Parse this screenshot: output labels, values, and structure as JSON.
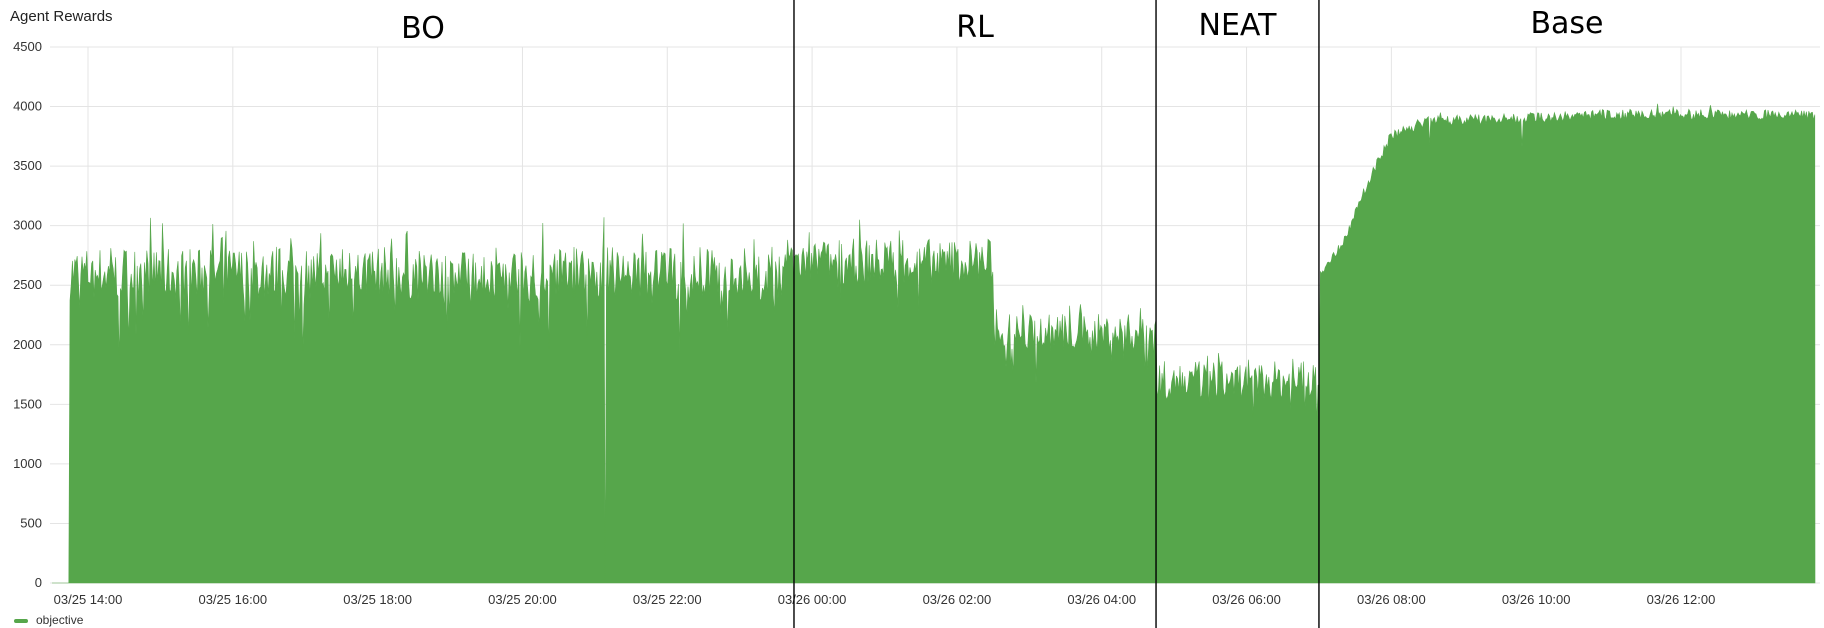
{
  "panel": {
    "title": "Agent Rewards"
  },
  "chart_data": {
    "type": "area",
    "title": "Agent Rewards",
    "xlabel": "",
    "ylabel": "",
    "ylim": [
      0,
      4500
    ],
    "y_ticks": [
      "4500",
      "4000",
      "3500",
      "3000",
      "2500",
      "2000",
      "1500",
      "1000",
      "500",
      "0"
    ],
    "x_ticks": [
      "03/25 14:00",
      "03/25 16:00",
      "03/25 18:00",
      "03/25 20:00",
      "03/25 22:00",
      "03/26 00:00",
      "03/26 02:00",
      "03/26 04:00",
      "03/26 06:00",
      "03/26 08:00",
      "03/26 10:00",
      "03/26 12:00"
    ],
    "x_range_hours": [
      -0.5,
      13.6
    ],
    "x_axis_note": "hours relative to 03/26 00:00 not printed; times shown via tick labels",
    "grid": true,
    "legend_position": "bottom-left",
    "series": [
      {
        "name": "objective",
        "color": "#56a64b",
        "phases": [
          {
            "label": "BO",
            "start": "03/25 13:45",
            "end": "03/25 23:45",
            "mean": 2600,
            "spread": 350,
            "drops": true
          },
          {
            "label": "RL",
            "start": "03/25 23:45",
            "end": "03/26 04:45",
            "segments": [
              {
                "start": "03/25 23:45",
                "end": "03/26 02:30",
                "mean": 2700,
                "spread": 300
              },
              {
                "start": "03/26 02:30",
                "end": "03/26 04:45",
                "mean": 2100,
                "spread": 250
              }
            ]
          },
          {
            "label": "NEAT",
            "start": "03/26 04:45",
            "end": "03/26 07:00",
            "mean": 1700,
            "spread": 250
          },
          {
            "label": "Base",
            "start": "03/26 07:00",
            "end": "03/26 14:00",
            "points": [
              [
                "03/26 07:00",
                2600
              ],
              [
                "03/26 07:20",
                2900
              ],
              [
                "03/26 07:40",
                3400
              ],
              [
                "03/26 08:00",
                3800
              ],
              [
                "03/26 08:30",
                3930
              ],
              [
                "03/26 09:00",
                3930
              ],
              [
                "03/26 10:00",
                3950
              ],
              [
                "03/26 11:00",
                3980
              ],
              [
                "03/26 12:00",
                3980
              ],
              [
                "03/26 14:00",
                3970
              ]
            ]
          }
        ]
      }
    ],
    "annotations": [
      "BO",
      "RL",
      "NEAT",
      "Base"
    ],
    "phase_boundaries": [
      "03/25 23:45",
      "03/26 04:45",
      "03/26 07:00"
    ]
  },
  "legend": {
    "label": "objective",
    "color": "#56a64b"
  }
}
